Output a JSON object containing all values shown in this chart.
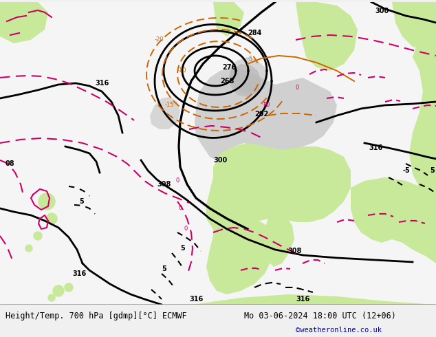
{
  "title_left": "Height/Temp. 700 hPa [gdmp][°C] ECMWF",
  "title_right": "Mo 03-06-2024 18:00 UTC (12+06)",
  "copyright": "©weatheronline.co.uk",
  "fig_width": 6.34,
  "fig_height": 4.9,
  "dpi": 100,
  "bg_color": "#f0f0f0",
  "ocean_color": "#f5f5f5",
  "land_color": "#c8e89a",
  "land_gray": "#b8b8b8",
  "geop_color": "#000000",
  "temp_neg_color": "#cc6600",
  "temp_pos_color": "#cc0066",
  "caption_color": "#000000",
  "copyright_color": "#0000bb",
  "font_size_caption": 8.5,
  "font_size_copyright": 7.5,
  "font_size_labels": 7.0
}
